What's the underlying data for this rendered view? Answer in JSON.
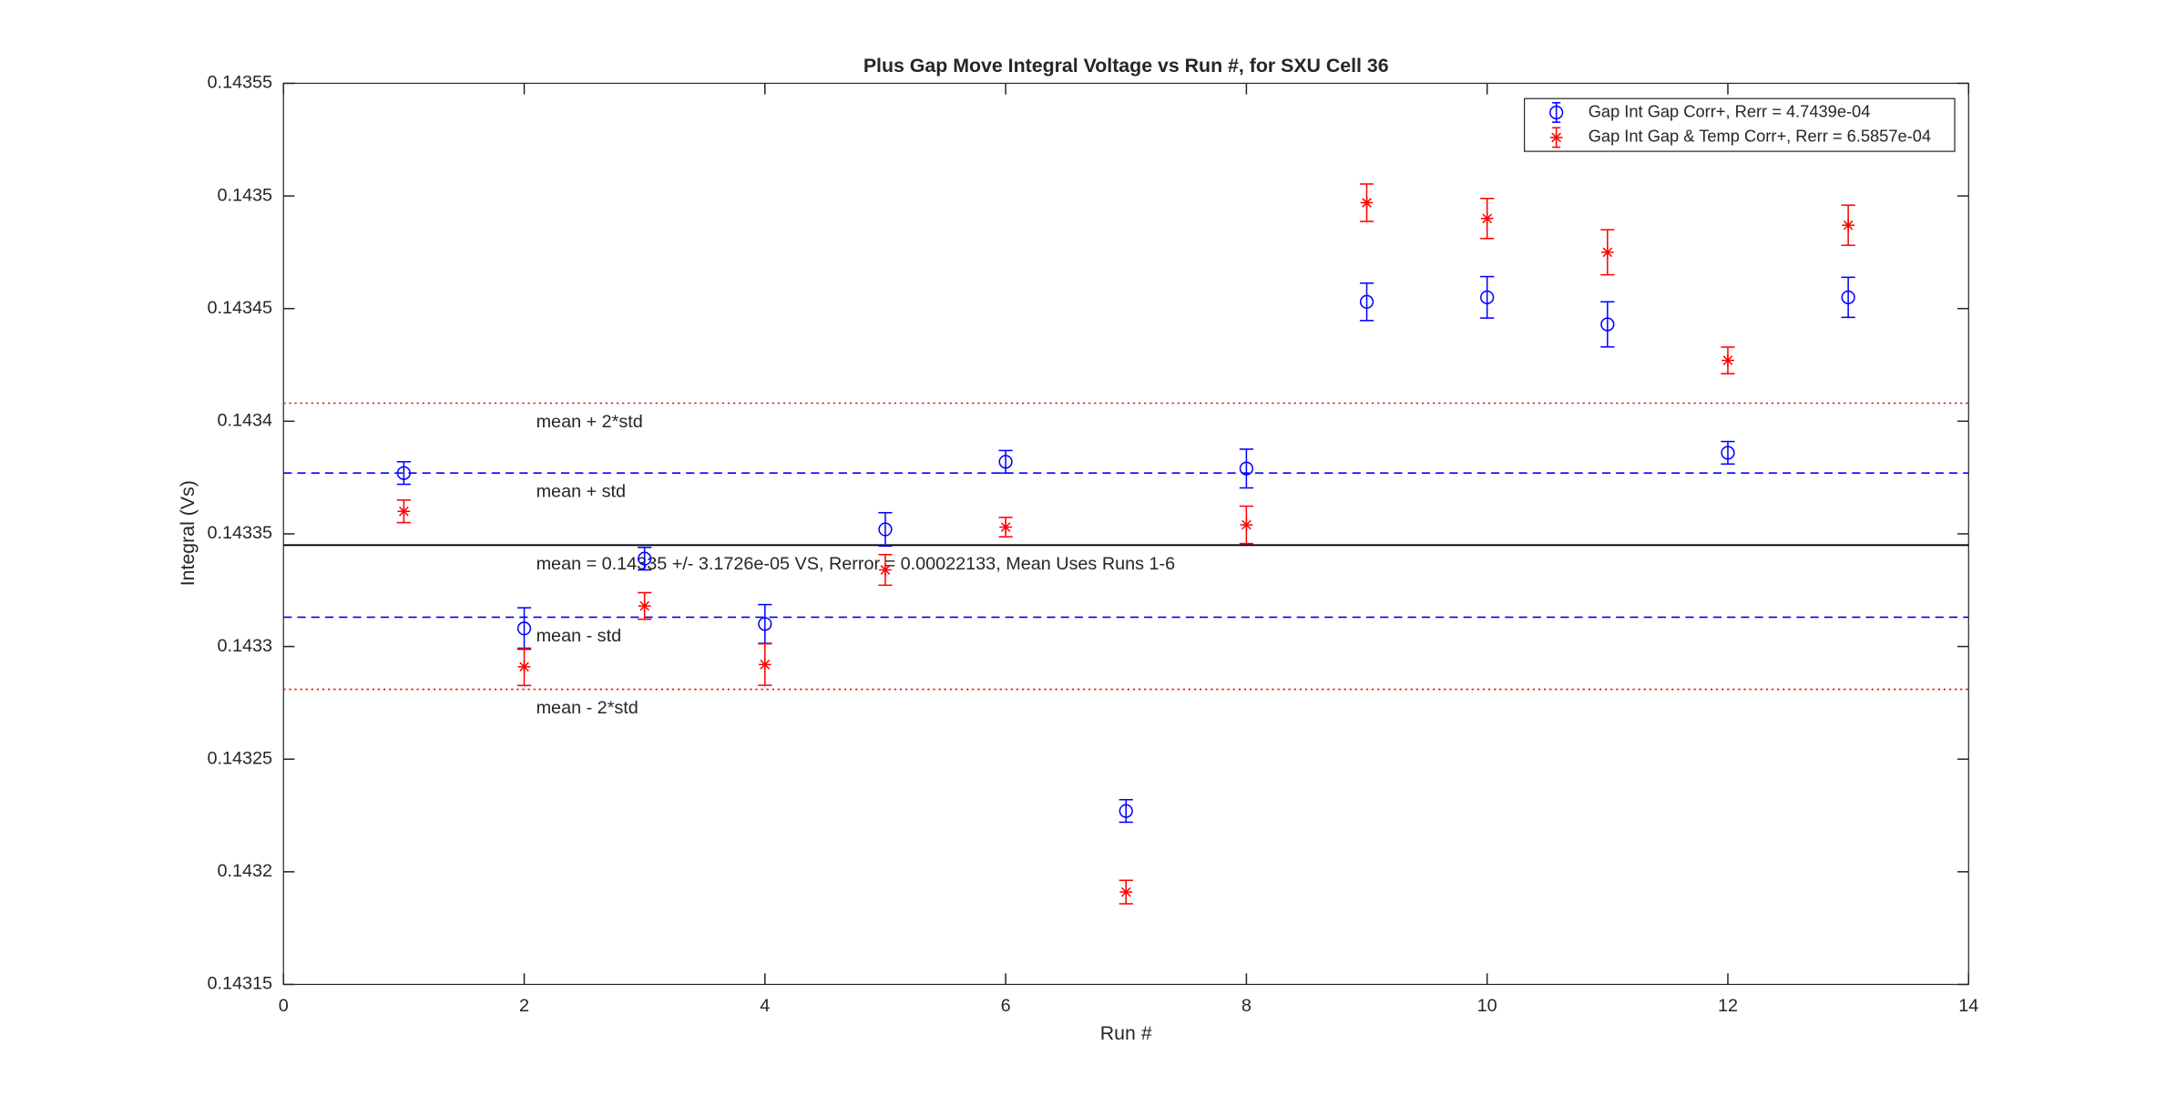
{
  "chart_data": {
    "type": "errorbar",
    "title": "Plus Gap Move Integral Voltage vs Run #, for SXU Cell 36",
    "x_label": "Run #",
    "y_label": "Integral (Vs)",
    "xlim": [
      0,
      14
    ],
    "xticks": [
      0,
      2,
      4,
      6,
      8,
      10,
      12,
      14
    ],
    "ylim": [
      0.14315,
      0.14355
    ],
    "yticks": [
      0.14315,
      0.1432,
      0.14325,
      0.1433,
      0.14335,
      0.1434,
      0.14345,
      0.1435,
      0.14355
    ],
    "x": [
      1,
      2,
      3,
      4,
      5,
      6,
      7,
      8,
      9,
      10,
      11,
      12,
      13
    ],
    "legend": "upper right",
    "series": [
      {
        "name": "Gap Int Gap Corr+, Rerr = 4.7439e-04",
        "color": "#0000ff",
        "marker": "circle",
        "values": [
          0.143377,
          0.143308,
          0.143339,
          0.14331,
          0.143352,
          0.143382,
          0.143227,
          0.143379,
          0.143453,
          0.143455,
          0.143443,
          0.143386,
          0.143455
        ],
        "errors": [
          5e-06,
          9.2e-06,
          5e-06,
          8.6e-06,
          7.4e-06,
          5e-06,
          5e-06,
          8.6e-06,
          8.3e-06,
          9.2e-06,
          1e-05,
          5e-06,
          8.9e-06
        ]
      },
      {
        "name": "Gap Int Gap & Temp  Corr+, Rerr = 6.5857e-04",
        "color": "#ff0000",
        "marker": "asterisk",
        "values": [
          0.14336,
          0.143291,
          0.143318,
          0.143292,
          0.143334,
          0.143353,
          0.143191,
          0.143354,
          0.143497,
          0.14349,
          0.143475,
          0.143427,
          0.143487
        ],
        "errors": [
          5e-06,
          8.3e-06,
          5.9e-06,
          9.2e-06,
          6.8e-06,
          4.3e-06,
          5.2e-06,
          8.3e-06,
          8.3e-06,
          8.9e-06,
          1e-05,
          5.9e-06,
          8.9e-06
        ]
      }
    ],
    "reference_lines": [
      {
        "label": "mean + 2*std",
        "value": 0.143408,
        "color": "#ff0000",
        "style": "dotted"
      },
      {
        "label": "mean + std",
        "value": 0.143377,
        "color": "#0000ff",
        "style": "dashed"
      },
      {
        "label": "mean = 0.14335 +/- 3.1726e-05 VS, Rerror = 0.00022133, Mean Uses Runs 1-6",
        "value": 0.143345,
        "color": "#000000",
        "style": "solid"
      },
      {
        "label": "mean - std",
        "value": 0.143313,
        "color": "#0000ff",
        "style": "dashed"
      },
      {
        "label": "mean - 2*std",
        "value": 0.143281,
        "color": "#ff0000",
        "style": "dotted"
      }
    ]
  }
}
